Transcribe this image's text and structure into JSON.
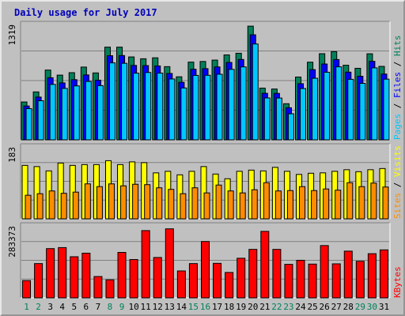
{
  "chart_data": {
    "type": "bar",
    "title": "Daily usage for July 2017",
    "categories": [
      "1",
      "2",
      "3",
      "4",
      "5",
      "6",
      "7",
      "8",
      "9",
      "10",
      "11",
      "12",
      "13",
      "14",
      "15",
      "16",
      "17",
      "18",
      "19",
      "20",
      "21",
      "22",
      "23",
      "24",
      "25",
      "26",
      "27",
      "28",
      "29",
      "30",
      "31"
    ],
    "weekend_days": [
      "1",
      "2",
      "8",
      "9",
      "15",
      "16",
      "22",
      "23",
      "29",
      "30"
    ],
    "grid": true,
    "colors": {
      "title": "#0000bb",
      "hits": "#00805a",
      "files": "#0000ff",
      "pages": "#00c8ff",
      "visits": "#ffff00",
      "sites": "#ff8c00",
      "kbytes": "#ff0000",
      "weekday_label": "#000000",
      "weekend_label": "#00805a"
    },
    "panels": [
      {
        "name": "hits_files_pages",
        "ymax_label": "1319",
        "ymax": 1319,
        "legend": [
          "Pages",
          "Files",
          "Hits"
        ],
        "legend_seps": [
          "/",
          "/"
        ],
        "series": [
          {
            "name": "Hits",
            "values": [
              433,
              548,
              798,
              740,
              768,
              832,
              765,
              1060,
              1060,
              948,
              927,
              938,
              837,
              721,
              889,
              896,
              912,
              971,
              990,
              1300,
              591,
              581,
              413,
              718,
              888,
              985,
              1009,
              853,
              818,
              984,
              840
            ]
          },
          {
            "name": "Files",
            "values": [
              387,
              489,
              710,
              651,
              688,
              742,
              682,
              962,
              964,
              851,
              849,
              845,
              759,
              658,
              807,
              814,
              834,
              885,
              919,
              1201,
              532,
              531,
              367,
              642,
              803,
              867,
              918,
              774,
              727,
              898,
              752
            ]
          },
          {
            "name": "Pages",
            "values": [
              357,
              447,
              634,
              588,
              617,
              668,
              620,
              880,
              875,
              762,
              770,
              763,
              696,
              593,
              737,
              738,
              750,
              806,
              834,
              1096,
              479,
              478,
              298,
              587,
              704,
              773,
              835,
              692,
              646,
              823,
              694
            ]
          }
        ]
      },
      {
        "name": "visits_sites",
        "ymax_label": "183",
        "ymax": 183,
        "legend": [
          "Sites",
          "Visits"
        ],
        "legend_seps": [
          "/"
        ],
        "series": [
          {
            "name": "Visits",
            "values": [
              136,
              133,
              122,
              142,
              136,
              138,
              138,
              148,
              138,
              145,
              143,
              117,
              121,
              112,
              121,
              133,
              114,
              102,
              121,
              124,
              122,
              131,
              121,
              113,
              116,
              117,
              121,
              125,
              120,
              125,
              128
            ]
          },
          {
            "name": "Sites",
            "values": [
              60,
              64,
              71,
              65,
              68,
              89,
              82,
              89,
              84,
              88,
              87,
              79,
              75,
              64,
              79,
              66,
              86,
              71,
              66,
              74,
              92,
              71,
              72,
              82,
              72,
              76,
              73,
              92,
              82,
              91,
              81
            ]
          }
        ]
      },
      {
        "name": "kbytes",
        "ymax_label": "283373",
        "ymax": 283373,
        "legend": [
          "KBytes"
        ],
        "legend_seps": [],
        "series": [
          {
            "name": "KBytes",
            "values": [
              68000,
              135000,
              194000,
              198000,
              162000,
              176000,
              84000,
              71000,
              179000,
              151000,
              265000,
              159000,
              272000,
              106000,
              135000,
              222000,
              136000,
              100000,
              156000,
              191000,
              262000,
              191000,
              132000,
              148000,
              133000,
              206000,
              134000,
              184000,
              144000,
              174000,
              189000
            ]
          }
        ]
      }
    ]
  }
}
